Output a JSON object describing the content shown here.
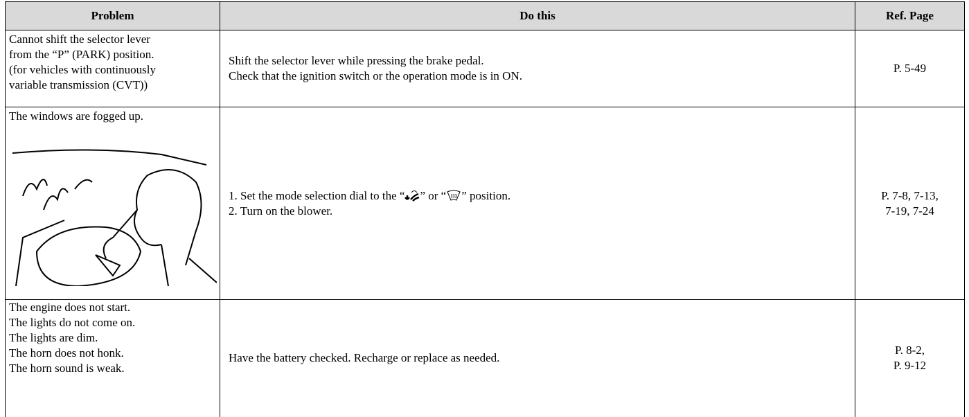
{
  "table": {
    "header": [
      "Problem",
      "Do this",
      "Ref. Page"
    ],
    "rows": [
      {
        "problem": [
          "Cannot shift the selector lever",
          "from the “P” (PARK) position.",
          "(for vehicles with continuously",
          "variable transmission (CVT))"
        ],
        "do_this": [
          "Shift the selector lever while pressing the brake pedal.",
          "Check that the ignition switch or the operation mode is in ON."
        ],
        "ref": [
          "P. 5-49"
        ]
      },
      {
        "problem": [
          "The windows are fogged up."
        ],
        "do_this": [
          [
            "1. Set the mode selection dial to the “",
            "” or “",
            "” position."
          ],
          "2. Turn on the blower."
        ],
        "ref": [
          "P. 7-8, 7-13,",
          "7-19, 7-24"
        ]
      },
      {
        "problem": [
          "The engine does not start.",
          "The lights do not come on.",
          "The lights are dim.",
          "The horn does not honk.",
          "The horn sound is weak."
        ],
        "do_this": [
          "Have the battery checked. Recharge or replace as needed."
        ],
        "ref": [
          "P. 8-2,",
          "P. 9-12"
        ]
      }
    ]
  }
}
